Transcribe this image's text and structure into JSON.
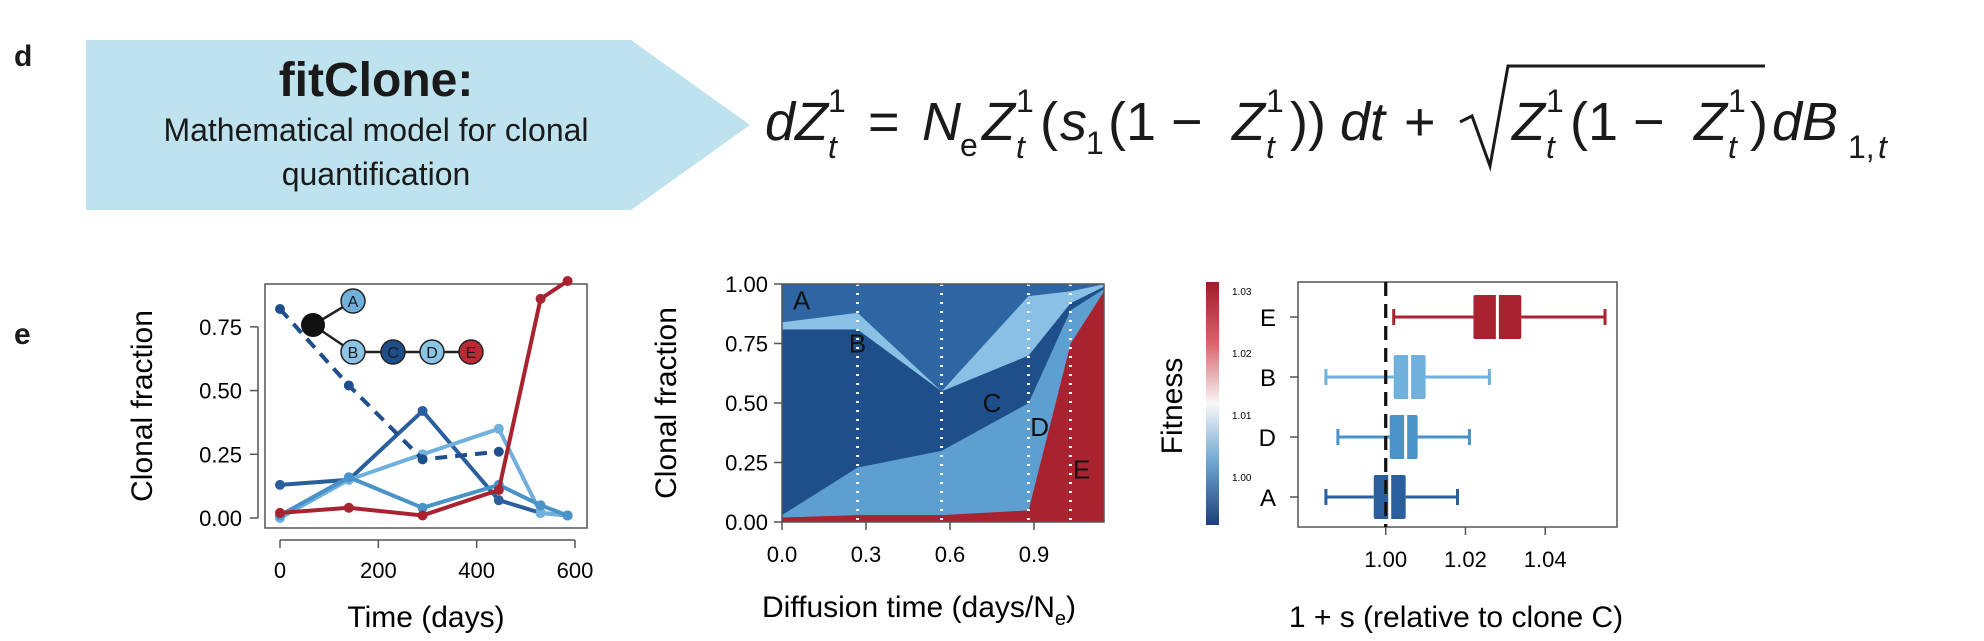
{
  "panels": {
    "d": "d",
    "e": "e"
  },
  "banner": {
    "title": "fitClone:",
    "subtitle": "Mathematical model for clonal quantification",
    "color": "#bfe3ee"
  },
  "equation": {
    "latex": "dZ_t^1 = N_e Z_t^1 (s_1(1 - Z_t^1))dt + \\sqrt{Z_t^1(1 - Z_t^1)} dB_{1,t}"
  },
  "chart_data": [
    {
      "type": "line",
      "xlabel": "Time (days)",
      "ylabel": "Clonal fraction",
      "xlim": [
        0,
        600
      ],
      "ylim": [
        0,
        0.875
      ],
      "xticks": [
        "0",
        "200",
        "400",
        "600"
      ],
      "yticks": [
        "0.00",
        "0.25",
        "0.50",
        "0.75"
      ],
      "x": [
        0,
        140,
        290,
        445,
        530,
        585
      ],
      "series": [
        {
          "name": "A",
          "color": "#2a5f9e",
          "dashed": false,
          "values": [
            0.13,
            0.15,
            0.42,
            0.07,
            0.02,
            0.01
          ]
        },
        {
          "name": "B",
          "color": "#6fb1dc",
          "dashed": false,
          "values": [
            0.0,
            0.15,
            0.25,
            0.35,
            0.02,
            0.01
          ]
        },
        {
          "name": "C",
          "color": "#1f4e8c",
          "dashed": true,
          "values": [
            0.82,
            0.52,
            0.23,
            0.26,
            null,
            null
          ]
        },
        {
          "name": "D",
          "color": "#4a93c8",
          "dashed": false,
          "values": [
            0.01,
            0.16,
            0.04,
            0.13,
            0.05,
            0.01
          ]
        },
        {
          "name": "E",
          "color": "#a8232f",
          "dashed": false,
          "values": [
            0.02,
            0.04,
            0.01,
            0.11,
            0.86,
            0.93
          ]
        }
      ],
      "tree": {
        "nodes": [
          {
            "label": "A",
            "color": "#6fb1dc"
          },
          {
            "label": "B",
            "color": "#8cc4e6"
          },
          {
            "label": "C",
            "color": "#1f4e8c"
          },
          {
            "label": "D",
            "color": "#8cc4e6"
          },
          {
            "label": "E",
            "color": "#b82b35"
          }
        ]
      }
    },
    {
      "type": "area",
      "xlabel": "Diffusion time (days/N",
      "xlabel_sub": "e",
      "xlabel_tail": ")",
      "ylabel": "Clonal fraction",
      "xlim": [
        0,
        1.15
      ],
      "ylim": [
        0,
        1
      ],
      "xticks": [
        "0.0",
        "0.3",
        "0.6",
        "0.9"
      ],
      "yticks": [
        "0.00",
        "0.25",
        "0.50",
        "0.75",
        "1.00"
      ],
      "x": [
        0,
        0.27,
        0.57,
        0.88,
        1.03,
        1.15
      ],
      "series": [
        {
          "name": "E",
          "color": "#a8232f",
          "values": [
            0.02,
            0.03,
            0.03,
            0.05,
            0.75,
            0.97
          ]
        },
        {
          "name": "D",
          "color": "#5c9fd0",
          "values": [
            0.01,
            0.2,
            0.27,
            0.45,
            0.14,
            0.01
          ]
        },
        {
          "name": "C",
          "color": "#1f4f8a",
          "values": [
            0.78,
            0.58,
            0.25,
            0.2,
            0.03,
            0.01
          ]
        },
        {
          "name": "B",
          "color": "#8ac0e4",
          "values": [
            0.03,
            0.07,
            0.0,
            0.25,
            0.05,
            0.01
          ]
        },
        {
          "name": "A",
          "color": "#2e65a3",
          "values": [
            0.16,
            0.12,
            0.45,
            0.05,
            0.03,
            0.0
          ]
        }
      ],
      "vlines": [
        0.27,
        0.57,
        0.88,
        1.03
      ],
      "area_labels": [
        {
          "text": "A",
          "x": 0.07,
          "y": 0.93
        },
        {
          "text": "B",
          "x": 0.27,
          "y": 0.75
        },
        {
          "text": "C",
          "x": 0.75,
          "y": 0.5
        },
        {
          "text": "D",
          "x": 0.92,
          "y": 0.4
        },
        {
          "text": "E",
          "x": 1.07,
          "y": 0.22
        }
      ]
    },
    {
      "type": "boxplot",
      "xlabel": "1 + s (relative to clone C)",
      "ylabel": "Fitness",
      "xlim": [
        0.978,
        1.058
      ],
      "xticks": [
        "1.00",
        "1.02",
        "1.04"
      ],
      "xtick_values": [
        1.0,
        1.02,
        1.04
      ],
      "reference_line": 1.0,
      "categories": [
        "E",
        "B",
        "D",
        "A"
      ],
      "boxes": [
        {
          "name": "E",
          "color": "#a8232f",
          "whisker_low": 1.002,
          "q1": 1.022,
          "median": 1.028,
          "q3": 1.034,
          "whisker_high": 1.055
        },
        {
          "name": "B",
          "color": "#6fb1dc",
          "whisker_low": 0.985,
          "q1": 1.002,
          "median": 1.006,
          "q3": 1.01,
          "whisker_high": 1.026
        },
        {
          "name": "D",
          "color": "#4a93c8",
          "whisker_low": 0.988,
          "q1": 1.001,
          "median": 1.005,
          "q3": 1.008,
          "whisker_high": 1.021
        },
        {
          "name": "A",
          "color": "#2a5f9e",
          "whisker_low": 0.985,
          "q1": 0.997,
          "median": 1.001,
          "q3": 1.005,
          "whisker_high": 1.018
        }
      ],
      "colorbar": {
        "ticks": [
          "1.03",
          "1.02",
          "1.01",
          "1.00"
        ],
        "colors": [
          "#9e1b2b",
          "#d9636b",
          "#f7f7f7",
          "#6aa3d1",
          "#1d3f7a"
        ]
      }
    }
  ]
}
